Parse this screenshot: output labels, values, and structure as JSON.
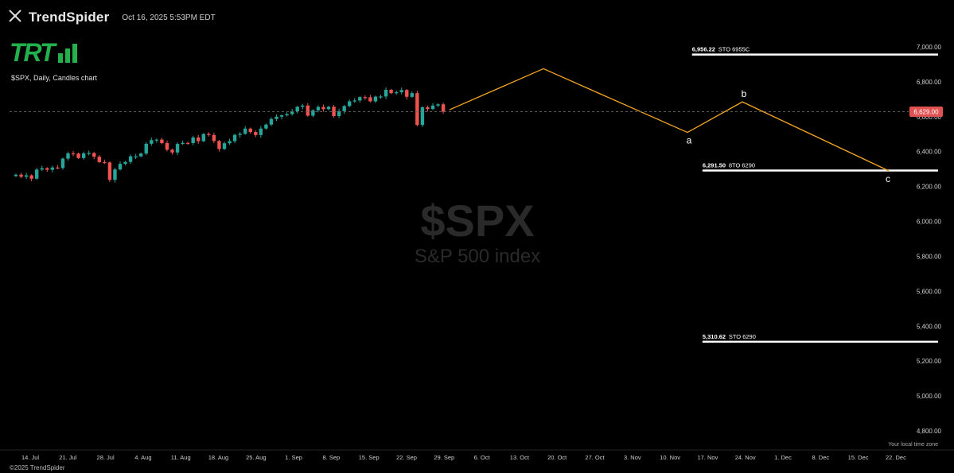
{
  "header": {
    "brand": "TrendSpider",
    "timestamp": "Oct 16, 2025 5:53PM EDT",
    "logo_text": "TRT",
    "chart_description": "$SPX, Daily, Candles chart",
    "copyright": "©2025 TrendSpider",
    "local_time_zone": "Your local time zone"
  },
  "colors": {
    "background": "#000000",
    "up_candle": "#26a69a",
    "down_candle": "#ef5350",
    "wave_line": "#f5a623",
    "level_line": "#ffffff",
    "price_badge": "#e05252",
    "brand_green": "#22b14c"
  },
  "watermark": {
    "symbol": "$SPX",
    "name": "S&P 500 index"
  },
  "chart_data": {
    "type": "candlestick",
    "ylim": [
      4750,
      7050
    ],
    "y_ticks": [
      "7,000.00",
      "6,800.00",
      "6,600.00",
      "6,400.00",
      "6,200.00",
      "6,000.00",
      "5,800.00",
      "5,600.00",
      "5,400.00",
      "5,200.00",
      "5,000.00",
      "4,800.00"
    ],
    "y_tick_values": [
      7000,
      6800,
      6600,
      6400,
      6200,
      6000,
      5800,
      5600,
      5400,
      5200,
      5000,
      4800
    ],
    "x_ticks": [
      "14. Jul",
      "21. Jul",
      "28. Jul",
      "4. Aug",
      "11. Aug",
      "18. Aug",
      "25. Aug",
      "1. Sep",
      "8. Sep",
      "15. Sep",
      "22. Sep",
      "29. Sep",
      "6. Oct",
      "13. Oct",
      "20. Oct",
      "27. Oct",
      "3. Nov",
      "10. Nov",
      "17. Nov",
      "24. Nov",
      "1. Dec",
      "8. Dec",
      "15. Dec",
      "22. Dec"
    ],
    "current_price": "6,629.00",
    "current_price_value": 6629,
    "closes": [
      6268,
      6256,
      6264,
      6245,
      6297,
      6305,
      6296,
      6309,
      6306,
      6360,
      6390,
      6389,
      6363,
      6390,
      6392,
      6371,
      6340,
      6338,
      6238,
      6298,
      6330,
      6341,
      6373,
      6373,
      6389,
      6445,
      6466,
      6469,
      6449,
      6411,
      6395,
      6444,
      6450,
      6449,
      6481,
      6460,
      6501,
      6495,
      6461,
      6415,
      6448,
      6460,
      6496,
      6502,
      6532,
      6512,
      6495,
      6532,
      6555,
      6587,
      6600,
      6608,
      6615,
      6631,
      6657,
      6664,
      6606,
      6637,
      6656,
      6643,
      6657,
      6604,
      6632,
      6661,
      6688,
      6693,
      6712,
      6711,
      6688,
      6715,
      6716,
      6754,
      6735,
      6740,
      6753,
      6714,
      6735,
      6553,
      6654,
      6644,
      6664,
      6671,
      6629
    ],
    "waves": {
      "points": [
        {
          "date_index": 72,
          "value": 6640
        },
        {
          "date_index": 96,
          "value": 6875,
          "label": ""
        },
        {
          "date_index": 137,
          "value": 6510,
          "label": "a"
        },
        {
          "date_index": 149,
          "value": 6685,
          "label": "b"
        },
        {
          "date_index": 182,
          "value": 6290,
          "label": "c"
        }
      ]
    },
    "levels": [
      {
        "value": 6956.22,
        "price_label": "6,956.22",
        "note": "STO 6955C",
        "start_date_index": 145
      },
      {
        "value": 6291.5,
        "price_label": "6,291.50",
        "note": "8TO 6290",
        "start_date_index": 147
      },
      {
        "value": 5310.62,
        "price_label": "5,310.62",
        "note": "STO 6290",
        "start_date_index": 147
      }
    ]
  }
}
